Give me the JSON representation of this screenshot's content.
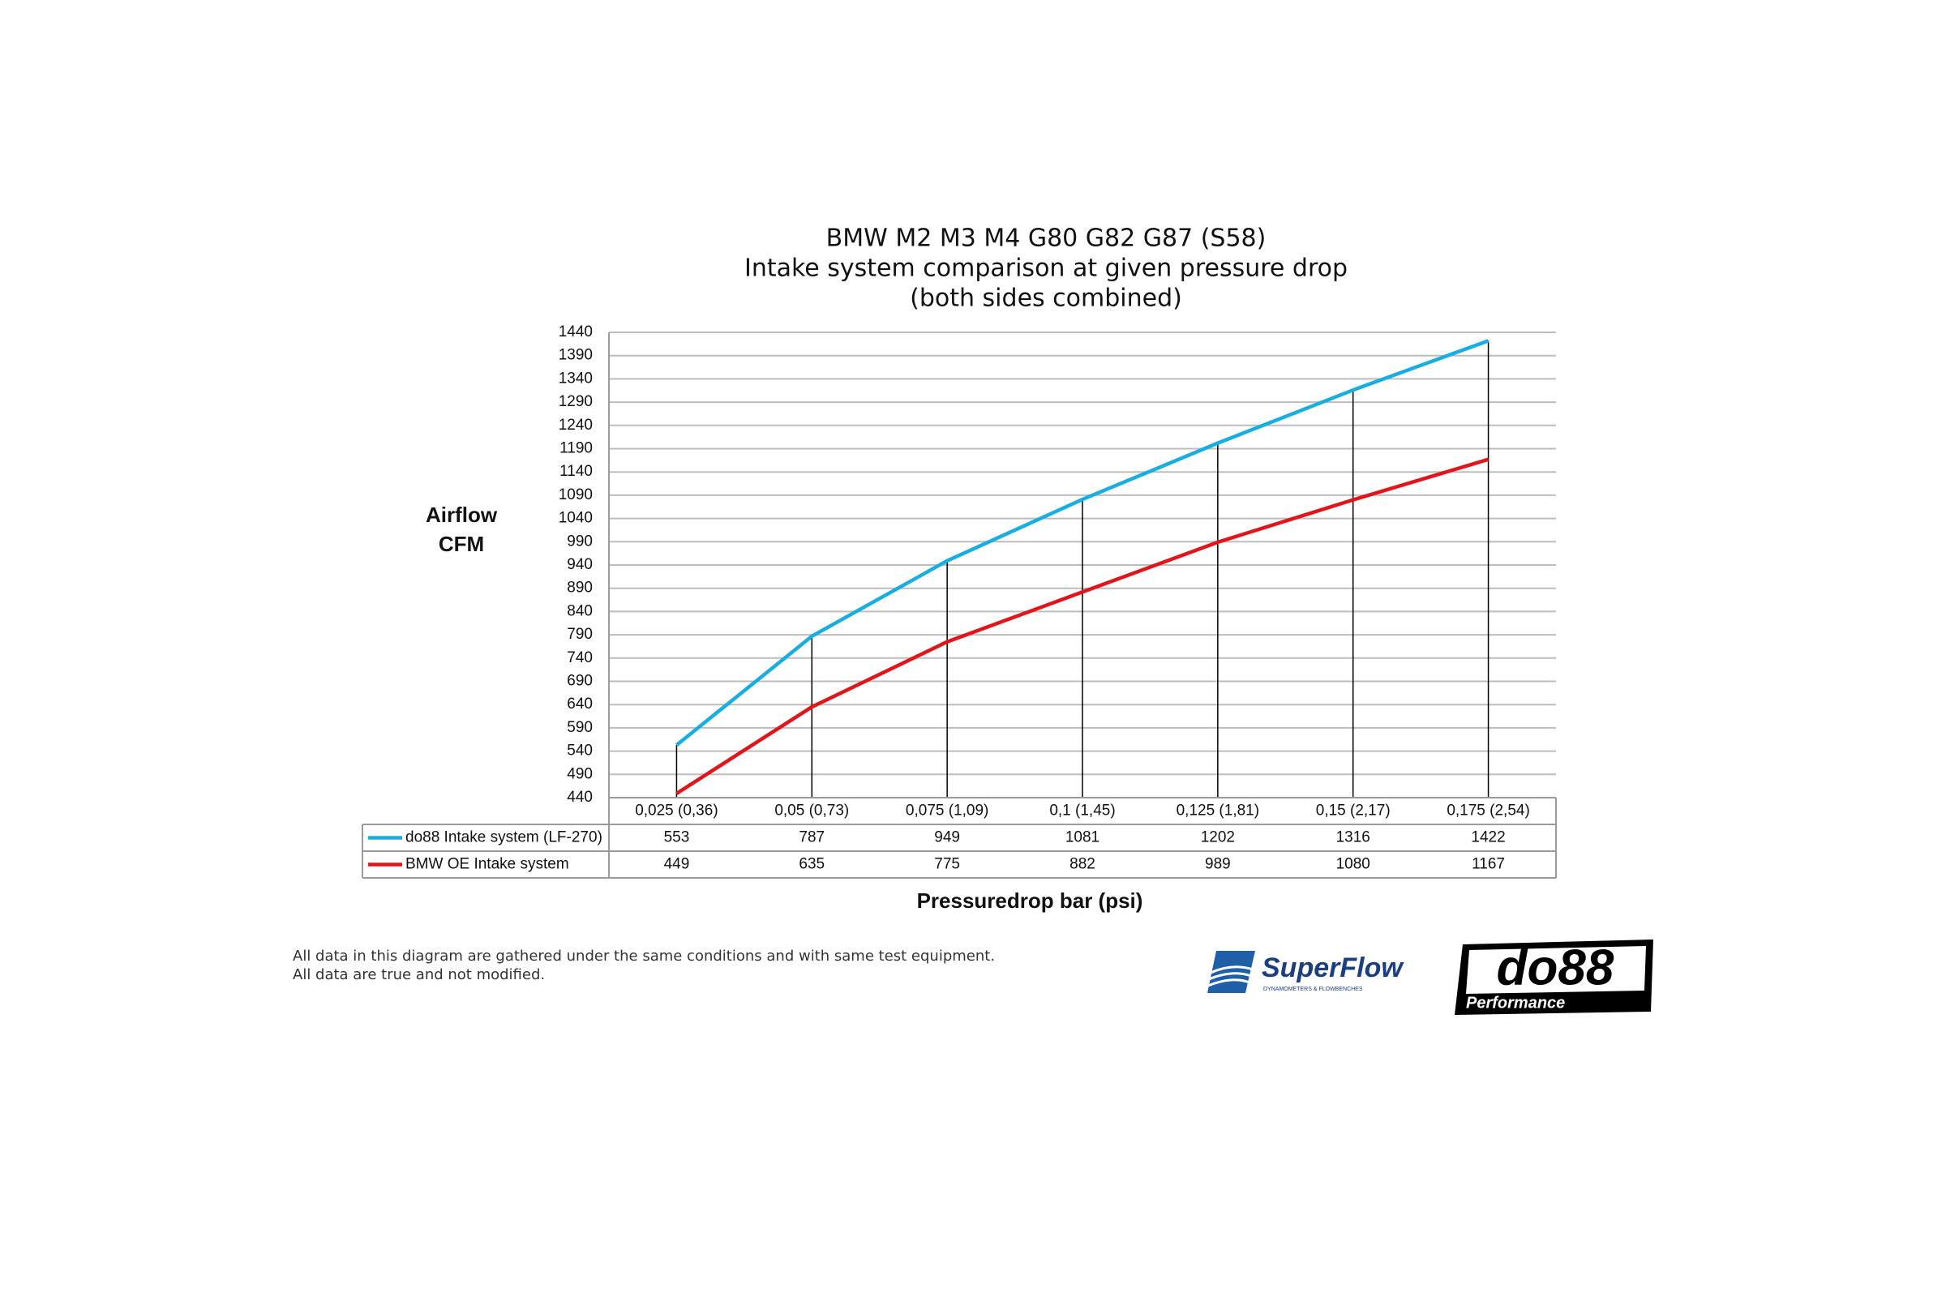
{
  "chart_data": {
    "type": "line",
    "title": "BMW M2 M3 M4 G80 G82 G87 (S58)",
    "subtitle": [
      "Intake system comparison at given pressure drop",
      "(both sides combined)"
    ],
    "y_label": [
      "Airflow",
      "CFM"
    ],
    "x_label": "Pressuredrop bar (psi)",
    "categories": [
      "0,025 (0,36)",
      "0,05 (0,73)",
      "0,075 (1,09)",
      "0,1 (1,45)",
      "0,125 (1,81)",
      "0,15 (2,17)",
      "0,175 (2,54)"
    ],
    "series": [
      {
        "name": "do88 Intake system (LF-270)",
        "color": "#1aaee0",
        "values": [
          553,
          787,
          949,
          1081,
          1202,
          1316,
          1422
        ]
      },
      {
        "name": "BMW OE Intake system",
        "color": "#e0161c",
        "values": [
          449,
          635,
          775,
          882,
          989,
          1080,
          1167
        ]
      }
    ],
    "ylim": [
      440,
      1440
    ],
    "yticks": [
      440,
      490,
      540,
      590,
      640,
      690,
      740,
      790,
      840,
      890,
      940,
      990,
      1040,
      1090,
      1140,
      1190,
      1240,
      1290,
      1340,
      1390,
      1440
    ],
    "grid": true,
    "drop_lines": true,
    "data_table": true
  },
  "footnote": [
    "All data in this diagram are gathered under the same conditions and with same test equipment.",
    "All data are true and not modified."
  ],
  "logos": {
    "superflow": "SuperFlow",
    "superflow_tagline": "DYNAMOMETERS & FLOWBENCHES",
    "do88": "do88",
    "do88_tagline": "Performance"
  }
}
